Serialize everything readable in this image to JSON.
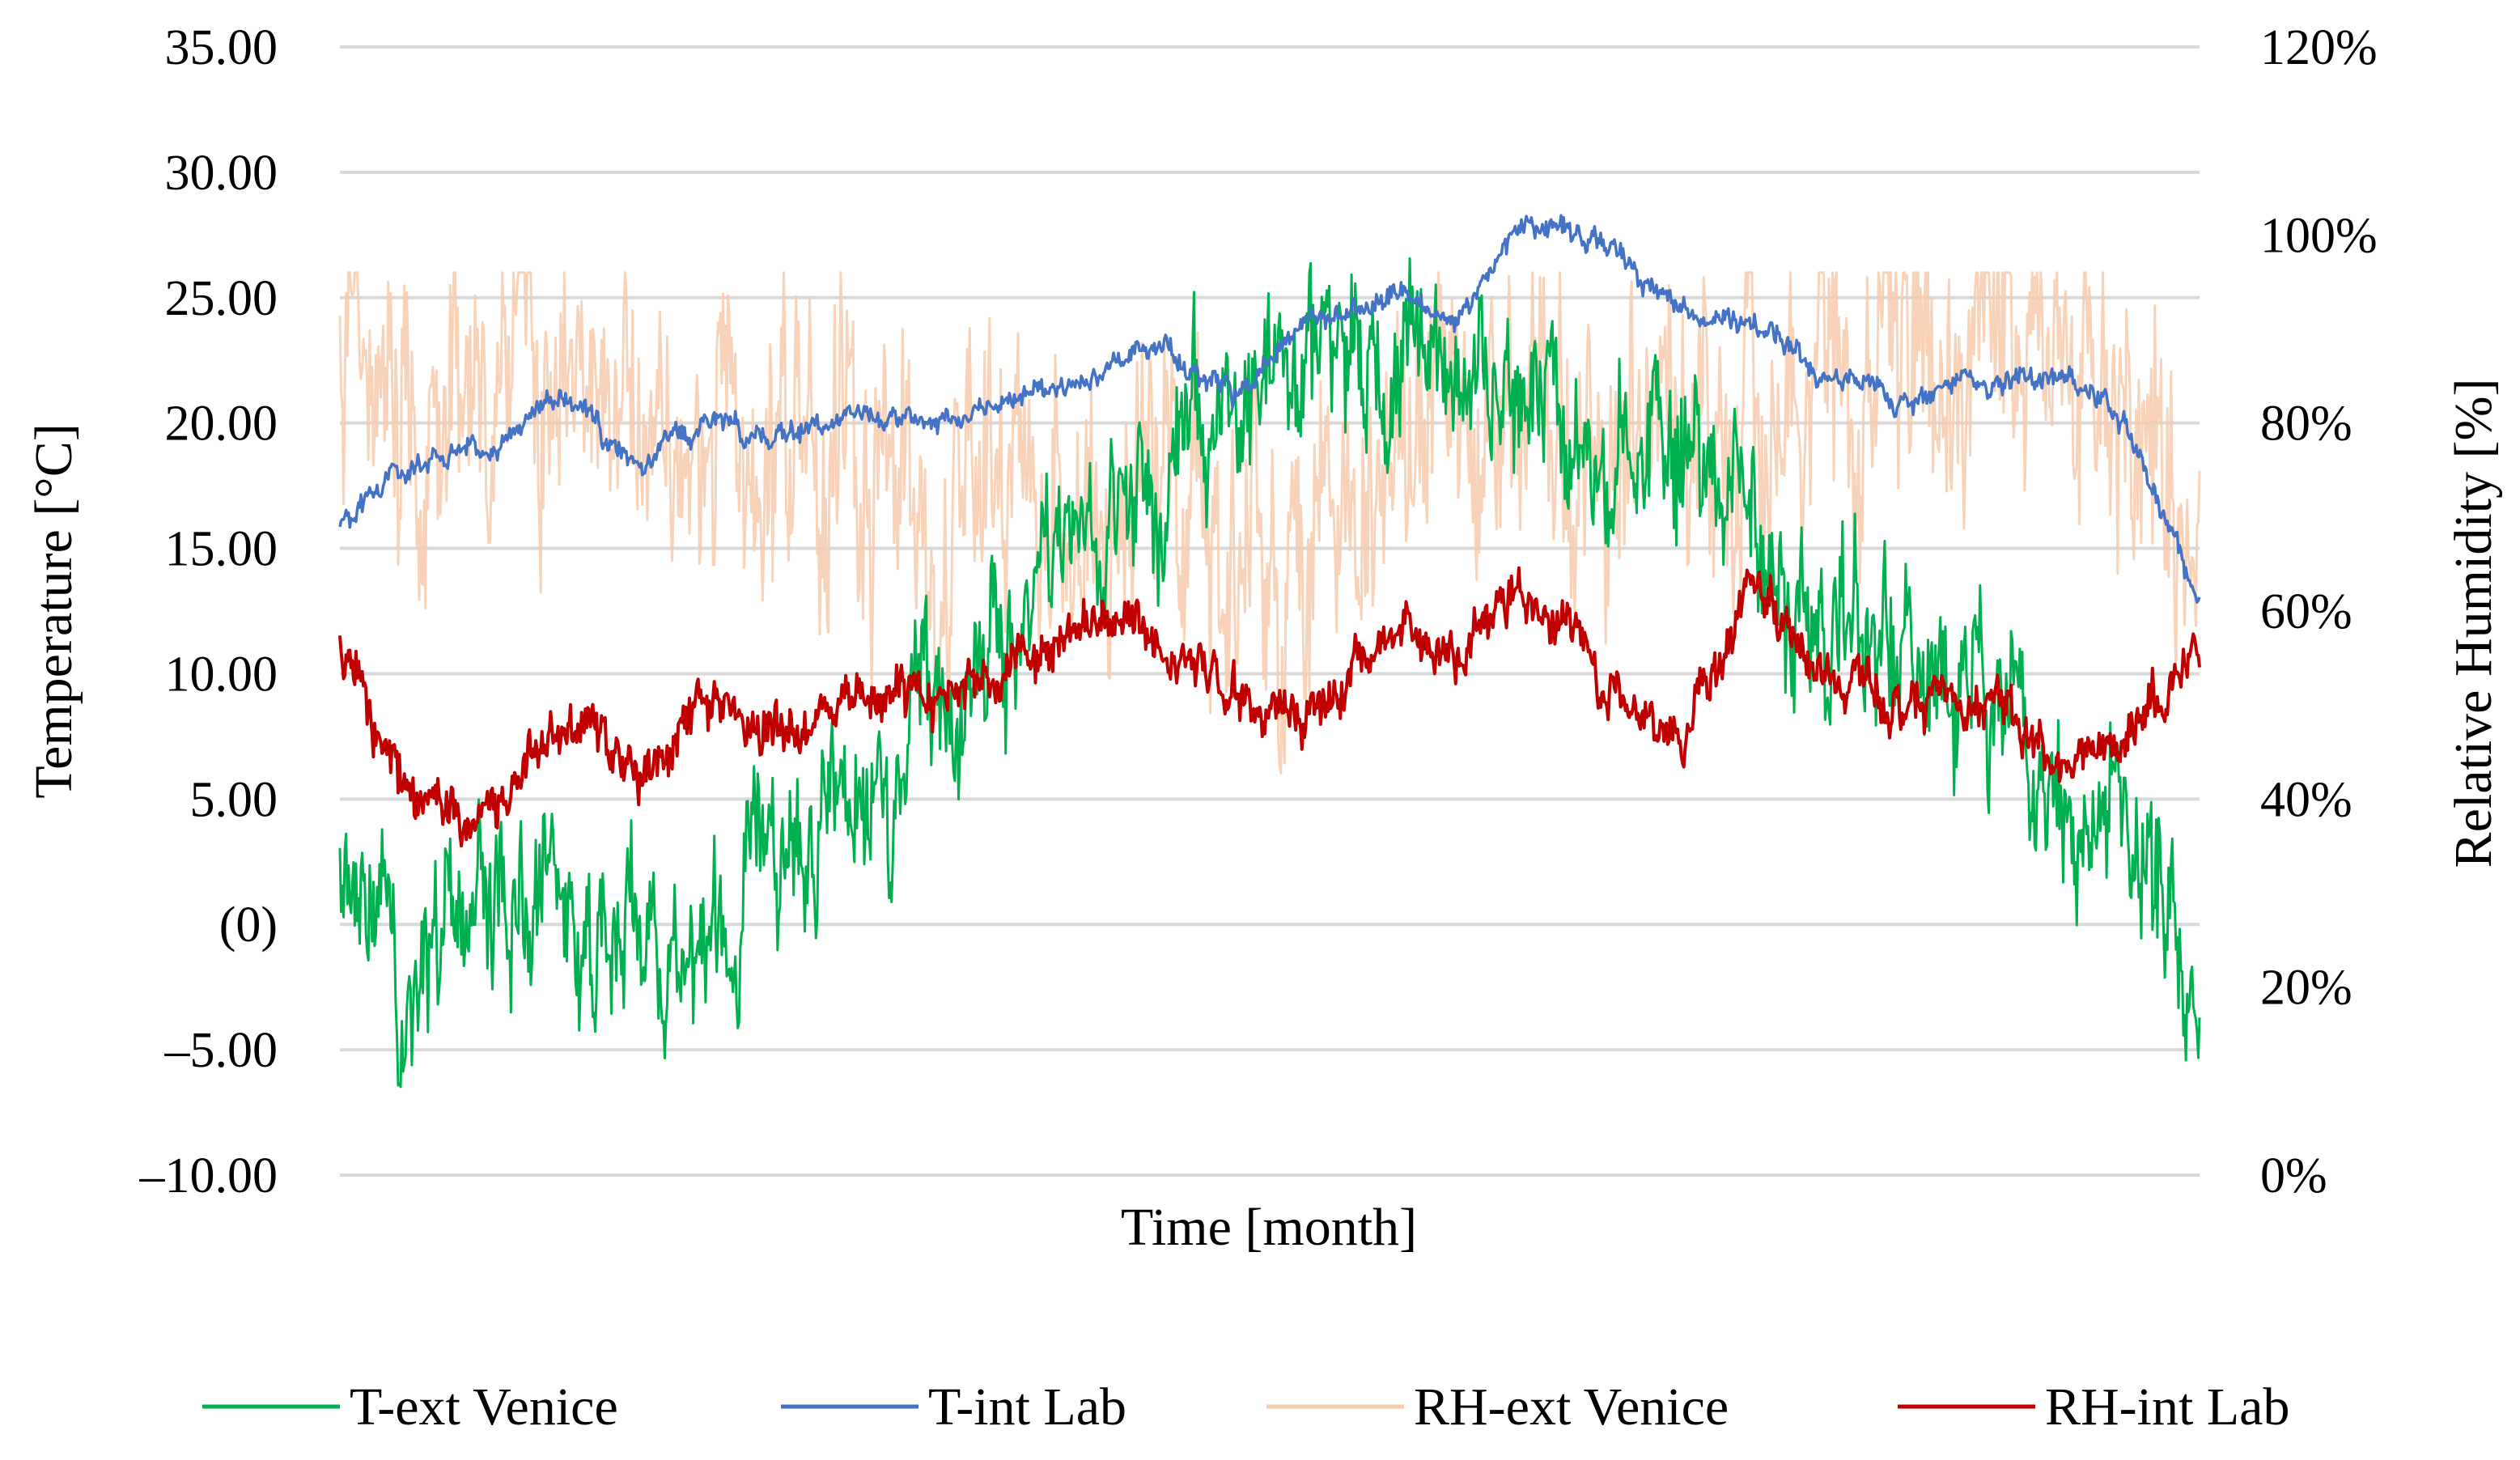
{
  "chart_data": {
    "type": "line",
    "title": "",
    "xlabel": "Time [month]",
    "ylabel_left": "Temperature [°C]",
    "ylabel_right": "Relative Humidity [%]",
    "ylim_left": [
      -10,
      35
    ],
    "ylim_right": [
      0,
      120
    ],
    "grid": true,
    "legend_position": "bottom",
    "yticks_left": [
      "35.00",
      "30.00",
      "25.00",
      "20.00",
      "15.00",
      "10.00",
      "5.00",
      "(0)",
      "–5.00",
      "–10.00"
    ],
    "yticks_right": [
      "120%",
      "100%",
      "80%",
      "60%",
      "40%",
      "20%",
      "0%"
    ],
    "x": [
      0,
      0.04,
      0.08,
      0.12,
      0.16,
      0.2,
      0.24,
      0.28,
      0.32,
      0.36,
      0.4,
      0.44,
      0.48,
      0.52,
      0.56,
      0.6,
      0.64,
      0.68,
      0.72,
      0.76,
      0.8,
      0.84,
      0.88,
      0.92,
      0.96,
      1
    ],
    "series": [
      {
        "name": "T-ext Venice",
        "color": "#00b050",
        "axis": "left",
        "volatility": 3.5,
        "values": [
          1.5,
          -2.5,
          1.0,
          0.5,
          -1.0,
          -0.5,
          4.5,
          6.0,
          9.0,
          12.0,
          15.0,
          17.5,
          20.5,
          22.5,
          23.5,
          22.0,
          21.0,
          19.5,
          18.0,
          14.5,
          12.0,
          10.5,
          9.0,
          4.5,
          3.0,
          -3.0
        ]
      },
      {
        "name": "T-int Lab",
        "color": "#4472c4",
        "axis": "left",
        "volatility": 0.5,
        "values": [
          16.0,
          18.5,
          19.0,
          21.0,
          18.5,
          20.0,
          19.5,
          20.5,
          20.0,
          21.0,
          21.5,
          23.0,
          21.0,
          24.0,
          25.0,
          24.5,
          28.0,
          27.0,
          24.5,
          24.0,
          22.0,
          21.0,
          21.5,
          22.0,
          20.0,
          13.0
        ]
      },
      {
        "name": "RH-ext Venice",
        "color": "#f8cbad",
        "axis": "right",
        "volatility": 16,
        "values": [
          90,
          80,
          88,
          85,
          82,
          75,
          80,
          78,
          72,
          70,
          68,
          72,
          70,
          68,
          72,
          80,
          82,
          78,
          75,
          80,
          85,
          88,
          90,
          88,
          85,
          60
        ]
      },
      {
        "name": "RH-int Lab",
        "color": "#c00000",
        "axis": "right",
        "volatility": 3,
        "values": [
          56,
          40,
          38,
          48,
          42,
          52,
          47,
          52,
          50,
          54,
          60,
          58,
          52,
          48,
          58,
          55,
          63,
          52,
          46,
          62,
          54,
          50,
          52,
          44,
          46,
          57
        ]
      }
    ]
  }
}
